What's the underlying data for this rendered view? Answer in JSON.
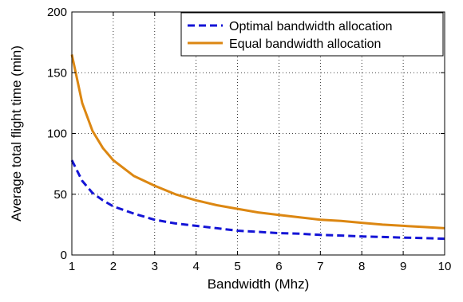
{
  "chart_data": {
    "type": "line",
    "title": "",
    "xlabel": "Bandwidth (Mhz)",
    "ylabel": "Average total flight time (min)",
    "xlim": [
      1,
      10
    ],
    "ylim": [
      0,
      200
    ],
    "xticks": [
      1,
      2,
      3,
      4,
      5,
      6,
      7,
      8,
      9,
      10
    ],
    "yticks": [
      0,
      50,
      100,
      150,
      200
    ],
    "grid": true,
    "legend_position": "top-right",
    "series": [
      {
        "name": "Optimal bandwidth allocation",
        "color": "#1414d6",
        "style": "dashed",
        "x": [
          1,
          1.25,
          1.5,
          1.75,
          2,
          2.5,
          3,
          3.5,
          4,
          4.5,
          5,
          5.5,
          6,
          6.5,
          7,
          7.5,
          8,
          8.5,
          9,
          9.5,
          10
        ],
        "y": [
          78,
          61,
          51,
          45,
          40,
          34,
          29,
          26,
          24,
          22,
          20,
          19,
          18,
          17.5,
          16.5,
          16,
          15.3,
          14.8,
          14.3,
          13.9,
          13.4
        ]
      },
      {
        "name": "Equal bandwidth allocation",
        "color": "#dc8712",
        "style": "solid",
        "x": [
          1,
          1.25,
          1.5,
          1.75,
          2,
          2.5,
          3,
          3.5,
          4,
          4.5,
          5,
          5.5,
          6,
          6.5,
          7,
          7.5,
          8,
          8.5,
          9,
          9.5,
          10
        ],
        "y": [
          165,
          125,
          102,
          88,
          78,
          65,
          57,
          50,
          45,
          41,
          38,
          35,
          33,
          31,
          29,
          28,
          26.5,
          25,
          24,
          23,
          22
        ]
      }
    ]
  }
}
